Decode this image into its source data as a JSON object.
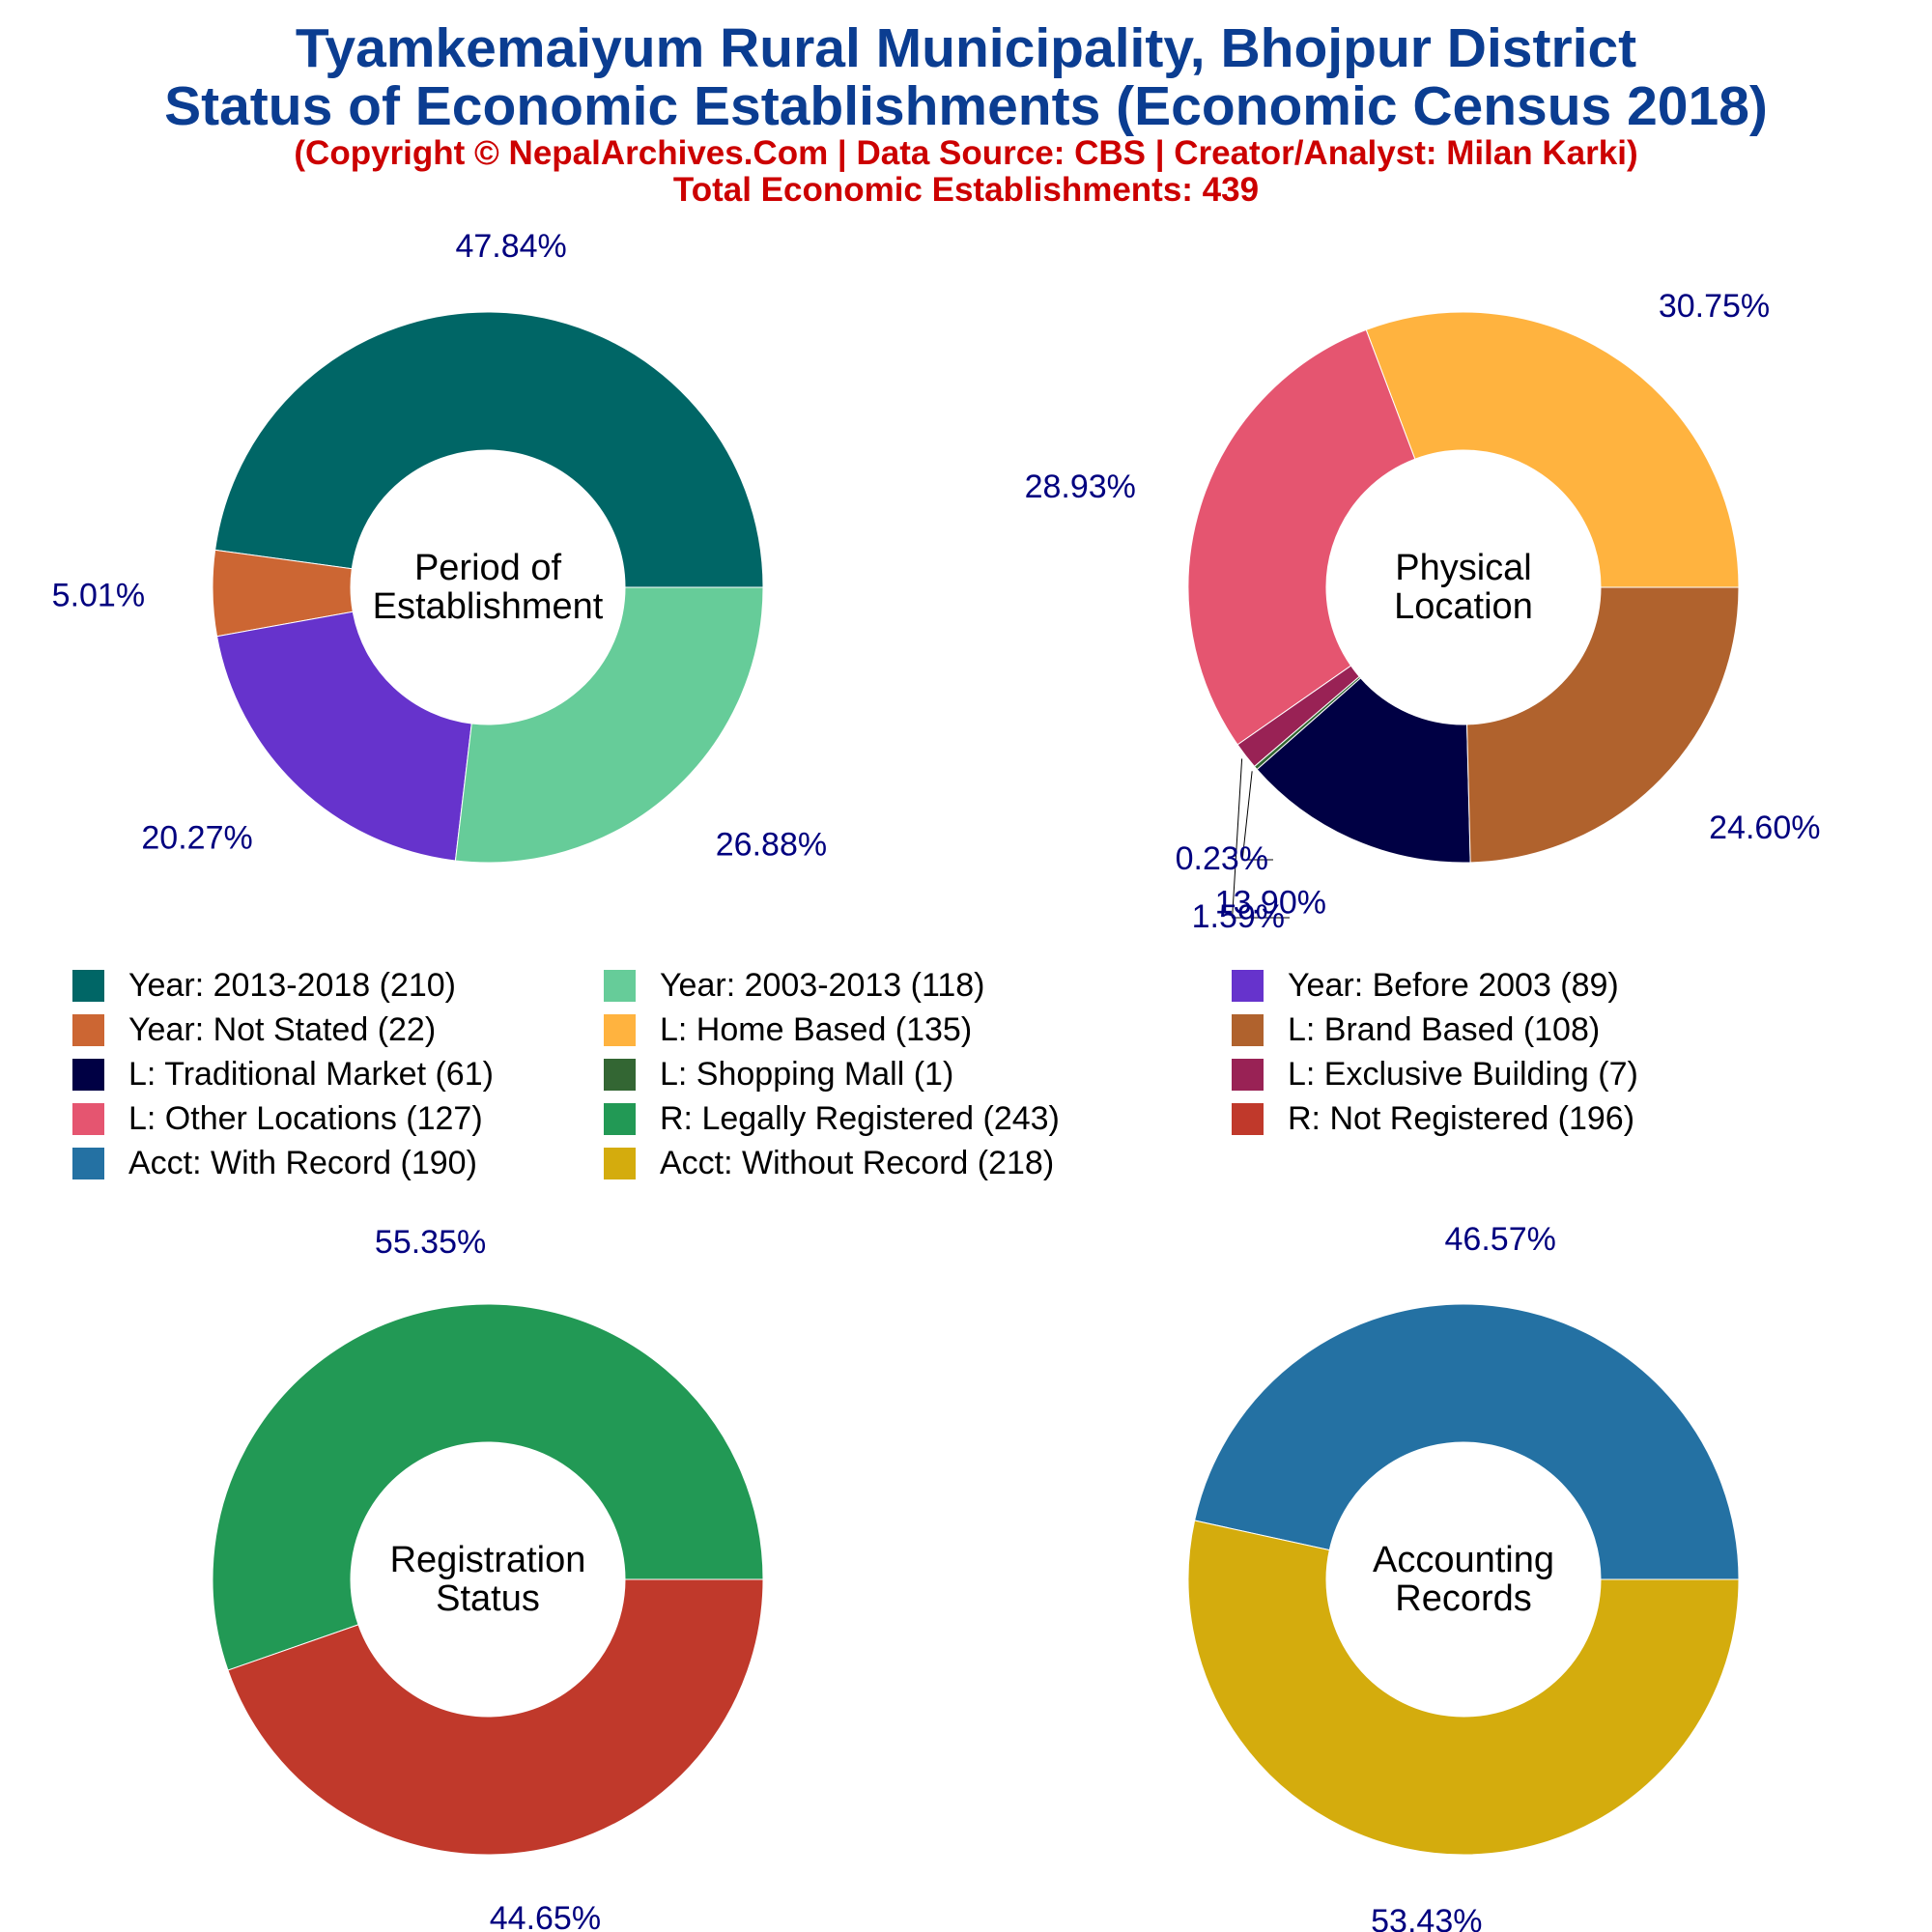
{
  "header": {
    "title_line1": "Tyamkemaiyum Rural Municipality, Bhojpur District",
    "title_line2": "Status of Economic Establishments (Economic Census 2018)",
    "subtitle_line1": "(Copyright © NepalArchives.Com | Data Source: CBS | Creator/Analyst: Milan Karki)",
    "subtitle_line2": "Total Economic Establishments: 439"
  },
  "legend": [
    {
      "label": "Year: 2013-2018 (210)",
      "color": "#006666"
    },
    {
      "label": "Year: 2003-2013 (118)",
      "color": "#66cc99"
    },
    {
      "label": "Year: Before 2003 (89)",
      "color": "#6633cc"
    },
    {
      "label": "Year: Not Stated (22)",
      "color": "#cc6633"
    },
    {
      "label": "L: Home Based (135)",
      "color": "#ffb33f"
    },
    {
      "label": "L: Brand Based (108)",
      "color": "#b0622d"
    },
    {
      "label": "L: Traditional Market (61)",
      "color": "#000044"
    },
    {
      "label": "L: Shopping Mall (1)",
      "color": "#336633"
    },
    {
      "label": "L: Exclusive Building (7)",
      "color": "#992255"
    },
    {
      "label": "L: Other Locations (127)",
      "color": "#e55570"
    },
    {
      "label": "R: Legally Registered (243)",
      "color": "#229955"
    },
    {
      "label": "R: Not Registered (196)",
      "color": "#c0392b"
    },
    {
      "label": "Acct: With Record (190)",
      "color": "#2471a3"
    },
    {
      "label": "Acct: Without Record (218)",
      "color": "#d4ac0d"
    }
  ],
  "chart_data": [
    {
      "type": "pie",
      "center_label": [
        "Period of",
        "Establishment"
      ],
      "slices": [
        {
          "name": "Year: 2013-2018",
          "value": 210,
          "pct_label": "47.84%",
          "color": "#006666"
        },
        {
          "name": "Year: Not Stated",
          "value": 22,
          "pct_label": "5.01%",
          "color": "#cc6633"
        },
        {
          "name": "Year: Before 2003",
          "value": 89,
          "pct_label": "20.27%",
          "color": "#6633cc"
        },
        {
          "name": "Year: 2003-2013",
          "value": 118,
          "pct_label": "26.88%",
          "color": "#66cc99"
        }
      ]
    },
    {
      "type": "pie",
      "center_label": [
        "Physical",
        "Location"
      ],
      "slices": [
        {
          "name": "L: Home Based",
          "value": 135,
          "pct_label": "30.75%",
          "color": "#ffb33f"
        },
        {
          "name": "L: Other Locations",
          "value": 127,
          "pct_label": "28.93%",
          "color": "#e55570"
        },
        {
          "name": "L: Exclusive Building",
          "value": 7,
          "pct_label": "1.59%",
          "color": "#992255"
        },
        {
          "name": "L: Shopping Mall",
          "value": 1,
          "pct_label": "0.23%",
          "color": "#336633"
        },
        {
          "name": "L: Traditional Market",
          "value": 61,
          "pct_label": "13.90%",
          "color": "#000044"
        },
        {
          "name": "L: Brand Based",
          "value": 108,
          "pct_label": "24.60%",
          "color": "#b0622d"
        }
      ]
    },
    {
      "type": "pie",
      "center_label": [
        "Registration",
        "Status"
      ],
      "slices": [
        {
          "name": "R: Legally Registered",
          "value": 243,
          "pct_label": "55.35%",
          "color": "#229955"
        },
        {
          "name": "R: Not Registered",
          "value": 196,
          "pct_label": "44.65%",
          "color": "#c0392b"
        }
      ]
    },
    {
      "type": "pie",
      "center_label": [
        "Accounting",
        "Records"
      ],
      "slices": [
        {
          "name": "Acct: With Record",
          "value": 190,
          "pct_label": "46.57%",
          "color": "#2471a3"
        },
        {
          "name": "Acct: Without Record",
          "value": 218,
          "pct_label": "53.43%",
          "color": "#d4ac0d"
        }
      ]
    }
  ]
}
